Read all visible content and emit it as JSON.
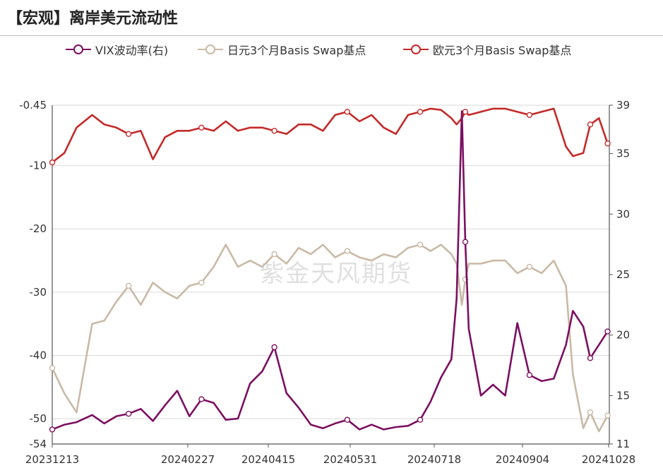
{
  "title": "【宏观】离岸美元流动性",
  "watermark": "紫金天风期货",
  "colors": {
    "vix": "#7b1060",
    "jpy": "#c9b9a6",
    "eur": "#c42a2a",
    "grid": "#d9d9d9",
    "axis": "#555555"
  },
  "chart_data": {
    "type": "line",
    "title": "离岸美元流动性",
    "xlabel": "",
    "ylabel": "",
    "x_ticks": [
      "20231213",
      "20240227",
      "20240415",
      "20240531",
      "20240718",
      "20240904",
      "20241028"
    ],
    "x_range": [
      "2023-12-13",
      "2024-10-29"
    ],
    "left_axis": {
      "ticks": [
        -0.45,
        -10,
        -20,
        -30,
        -40,
        -50,
        -54
      ],
      "ylim": [
        -54,
        -0.45
      ]
    },
    "right_axis": {
      "ticks": [
        39,
        35,
        30,
        25,
        20,
        15,
        11
      ],
      "ylim": [
        11,
        39
      ]
    },
    "legend_position": "top",
    "series": [
      {
        "name": "VIX波动率(右)",
        "axis": "right",
        "color": "#7b1060",
        "x": [
          "2023-12-13",
          "2023-12-20",
          "2023-12-27",
          "2024-01-05",
          "2024-01-12",
          "2024-01-19",
          "2024-01-26",
          "2024-02-02",
          "2024-02-09",
          "2024-02-16",
          "2024-02-23",
          "2024-03-01",
          "2024-03-08",
          "2024-03-15",
          "2024-03-22",
          "2024-03-29",
          "2024-04-05",
          "2024-04-12",
          "2024-04-19",
          "2024-04-26",
          "2024-05-03",
          "2024-05-10",
          "2024-05-17",
          "2024-05-24",
          "2024-05-31",
          "2024-06-07",
          "2024-06-14",
          "2024-06-21",
          "2024-06-28",
          "2024-07-05",
          "2024-07-12",
          "2024-07-18",
          "2024-07-24",
          "2024-07-30",
          "2024-08-02",
          "2024-08-05",
          "2024-08-07",
          "2024-08-09",
          "2024-08-16",
          "2024-08-23",
          "2024-08-30",
          "2024-09-06",
          "2024-09-13",
          "2024-09-20",
          "2024-09-27",
          "2024-10-04",
          "2024-10-08",
          "2024-10-14",
          "2024-10-18",
          "2024-10-23",
          "2024-10-28"
        ],
        "y": [
          12.2,
          12.6,
          12.8,
          13.4,
          12.7,
          13.3,
          13.5,
          13.9,
          12.9,
          14.2,
          15.4,
          13.3,
          14.7,
          14.4,
          13.0,
          13.1,
          16.0,
          17.0,
          19.0,
          15.2,
          14.0,
          12.6,
          12.3,
          12.7,
          13.0,
          12.2,
          12.6,
          12.2,
          12.4,
          12.5,
          13.0,
          14.5,
          16.5,
          18.0,
          23.0,
          38.5,
          27.7,
          20.5,
          15.0,
          15.9,
          15.0,
          21.0,
          16.7,
          16.2,
          16.4,
          19.2,
          22.0,
          20.7,
          18.1,
          19.2,
          20.3
        ]
      },
      {
        "name": "日元3个月Basis Swap基点",
        "axis": "left",
        "color": "#c9b9a6",
        "x": [
          "2023-12-13",
          "2023-12-20",
          "2023-12-27",
          "2024-01-05",
          "2024-01-12",
          "2024-01-19",
          "2024-01-26",
          "2024-02-02",
          "2024-02-09",
          "2024-02-16",
          "2024-02-23",
          "2024-03-01",
          "2024-03-08",
          "2024-03-15",
          "2024-03-22",
          "2024-03-29",
          "2024-04-05",
          "2024-04-12",
          "2024-04-19",
          "2024-04-26",
          "2024-05-03",
          "2024-05-10",
          "2024-05-17",
          "2024-05-24",
          "2024-05-31",
          "2024-06-07",
          "2024-06-14",
          "2024-06-21",
          "2024-06-28",
          "2024-07-05",
          "2024-07-12",
          "2024-07-18",
          "2024-07-24",
          "2024-07-30",
          "2024-08-02",
          "2024-08-05",
          "2024-08-07",
          "2024-08-09",
          "2024-08-16",
          "2024-08-23",
          "2024-08-30",
          "2024-09-06",
          "2024-09-13",
          "2024-09-20",
          "2024-09-27",
          "2024-10-04",
          "2024-10-08",
          "2024-10-14",
          "2024-10-18",
          "2024-10-23",
          "2024-10-28"
        ],
        "y": [
          -42.0,
          -46.0,
          -49.0,
          -35.0,
          -34.5,
          -31.5,
          -29.0,
          -32.0,
          -28.5,
          -30.0,
          -31.0,
          -29.0,
          -28.5,
          -26.0,
          -22.5,
          -26.0,
          -25.0,
          -26.0,
          -24.0,
          -25.5,
          -23.0,
          -24.0,
          -22.5,
          -24.5,
          -23.5,
          -24.5,
          -25.0,
          -24.0,
          -24.5,
          -23.0,
          -22.5,
          -23.5,
          -22.5,
          -24.0,
          -25.5,
          -32.0,
          -28.0,
          -25.5,
          -25.5,
          -25.0,
          -25.0,
          -27.0,
          -26.0,
          -27.0,
          -25.0,
          -29.0,
          -43.0,
          -51.5,
          -49.0,
          -52.0,
          -49.5
        ]
      },
      {
        "name": "欧元3个月Basis Swap基点",
        "axis": "left",
        "color": "#c42a2a",
        "x": [
          "2023-12-13",
          "2023-12-20",
          "2023-12-27",
          "2024-01-05",
          "2024-01-12",
          "2024-01-19",
          "2024-01-26",
          "2024-02-02",
          "2024-02-09",
          "2024-02-16",
          "2024-02-23",
          "2024-03-01",
          "2024-03-08",
          "2024-03-15",
          "2024-03-22",
          "2024-03-29",
          "2024-04-05",
          "2024-04-12",
          "2024-04-19",
          "2024-04-26",
          "2024-05-03",
          "2024-05-10",
          "2024-05-17",
          "2024-05-24",
          "2024-05-31",
          "2024-06-07",
          "2024-06-14",
          "2024-06-21",
          "2024-06-28",
          "2024-07-05",
          "2024-07-12",
          "2024-07-18",
          "2024-07-24",
          "2024-07-30",
          "2024-08-02",
          "2024-08-05",
          "2024-08-07",
          "2024-08-09",
          "2024-08-16",
          "2024-08-23",
          "2024-08-30",
          "2024-09-06",
          "2024-09-13",
          "2024-09-20",
          "2024-09-27",
          "2024-10-04",
          "2024-10-08",
          "2024-10-14",
          "2024-10-18",
          "2024-10-23",
          "2024-10-28"
        ],
        "y": [
          -9.5,
          -8.0,
          -4.0,
          -2.0,
          -3.5,
          -4.0,
          -5.0,
          -4.5,
          -9.0,
          -5.5,
          -4.5,
          -4.5,
          -4.0,
          -4.5,
          -3.0,
          -4.5,
          -4.0,
          -4.0,
          -4.5,
          -5.0,
          -3.5,
          -3.5,
          -4.5,
          -2.0,
          -1.5,
          -3.0,
          -2.0,
          -4.0,
          -5.0,
          -2.0,
          -1.5,
          -1.0,
          -1.2,
          -2.5,
          -3.5,
          -2.5,
          -1.5,
          -2.0,
          -1.5,
          -1.0,
          -1.0,
          -1.5,
          -2.0,
          -1.5,
          -1.0,
          -7.0,
          -8.5,
          -8.0,
          -3.5,
          -2.5,
          -6.5
        ]
      }
    ]
  }
}
